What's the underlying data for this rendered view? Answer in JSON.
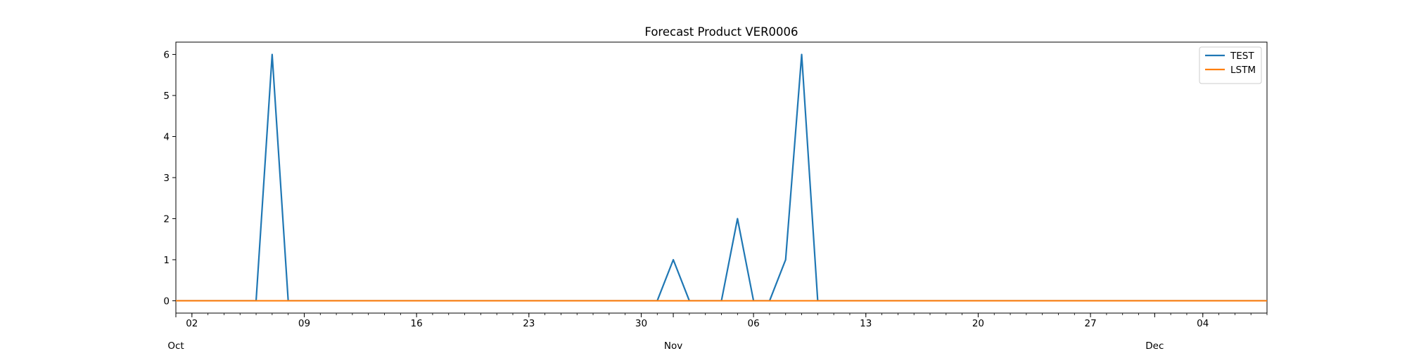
{
  "chart_data": {
    "type": "line",
    "title": "Forecast Product VER0006",
    "xlabel": "",
    "ylabel": "",
    "x_range": [
      "2023-10-01",
      "2023-12-08"
    ],
    "ylim": [
      -0.3,
      6.3
    ],
    "grid": false,
    "legend_position": "top-right",
    "x_major_ticks": [
      {
        "date": "2023-10-02",
        "label": "02"
      },
      {
        "date": "2023-10-09",
        "label": "09"
      },
      {
        "date": "2023-10-16",
        "label": "16"
      },
      {
        "date": "2023-10-23",
        "label": "23"
      },
      {
        "date": "2023-10-30",
        "label": "30"
      },
      {
        "date": "2023-11-06",
        "label": "06"
      },
      {
        "date": "2023-11-13",
        "label": "13"
      },
      {
        "date": "2023-11-20",
        "label": "20"
      },
      {
        "date": "2023-11-27",
        "label": "27"
      },
      {
        "date": "2023-12-04",
        "label": "04"
      }
    ],
    "x_month_labels": [
      {
        "date": "2023-10-01",
        "label": "Oct"
      },
      {
        "date": "2023-11-01",
        "label": "Nov"
      },
      {
        "date": "2023-12-01",
        "label": "Dec"
      }
    ],
    "y_ticks": [
      0,
      1,
      2,
      3,
      4,
      5,
      6
    ],
    "series": [
      {
        "name": "TEST",
        "color": "#1f77b4",
        "points": [
          [
            "2023-10-01",
            0
          ],
          [
            "2023-10-06",
            0
          ],
          [
            "2023-10-07",
            6
          ],
          [
            "2023-10-08",
            0
          ],
          [
            "2023-10-31",
            0
          ],
          [
            "2023-11-01",
            1
          ],
          [
            "2023-11-02",
            0
          ],
          [
            "2023-11-04",
            0
          ],
          [
            "2023-11-05",
            2
          ],
          [
            "2023-11-06",
            0
          ],
          [
            "2023-11-07",
            0
          ],
          [
            "2023-11-08",
            1
          ],
          [
            "2023-11-09",
            6
          ],
          [
            "2023-11-10",
            0
          ],
          [
            "2023-12-08",
            0
          ]
        ]
      },
      {
        "name": "LSTM",
        "color": "#ff7f0e",
        "points": [
          [
            "2023-10-01",
            0
          ],
          [
            "2023-12-08",
            0
          ]
        ]
      }
    ]
  }
}
